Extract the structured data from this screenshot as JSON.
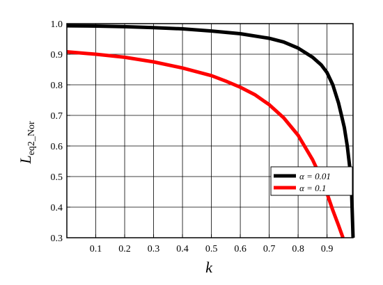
{
  "chart_data": {
    "type": "line",
    "xlabel": "k",
    "ylabel_main": "L",
    "ylabel_sub": "eq2_Nor",
    "xlim": [
      0,
      0.99
    ],
    "ylim": [
      0.3,
      1.0
    ],
    "x_ticks": [
      "0.1",
      "0.2",
      "0.3",
      "0.4",
      "0.5",
      "0.6",
      "0.7",
      "0.8",
      "0.9"
    ],
    "y_ticks": [
      "0.3",
      "0.4",
      "0.5",
      "0.6",
      "0.7",
      "0.8",
      "0.9",
      "1.0"
    ],
    "grid": true,
    "legend_position": "right",
    "series": [
      {
        "name": "α = 0.01",
        "color": "#000000",
        "points": [
          [
            0.0,
            0.993
          ],
          [
            0.1,
            0.992
          ],
          [
            0.2,
            0.99
          ],
          [
            0.3,
            0.987
          ],
          [
            0.4,
            0.983
          ],
          [
            0.5,
            0.976
          ],
          [
            0.6,
            0.967
          ],
          [
            0.7,
            0.952
          ],
          [
            0.75,
            0.94
          ],
          [
            0.8,
            0.92
          ],
          [
            0.85,
            0.89
          ],
          [
            0.88,
            0.865
          ],
          [
            0.9,
            0.84
          ],
          [
            0.92,
            0.8
          ],
          [
            0.94,
            0.74
          ],
          [
            0.95,
            0.7
          ],
          [
            0.96,
            0.66
          ],
          [
            0.97,
            0.6
          ],
          [
            0.98,
            0.52
          ],
          [
            0.985,
            0.45
          ],
          [
            0.99,
            0.3
          ]
        ]
      },
      {
        "name": "α = 0.1",
        "color": "#ff0000",
        "points": [
          [
            0.0,
            0.908
          ],
          [
            0.1,
            0.9
          ],
          [
            0.2,
            0.89
          ],
          [
            0.3,
            0.875
          ],
          [
            0.4,
            0.855
          ],
          [
            0.5,
            0.83
          ],
          [
            0.55,
            0.812
          ],
          [
            0.6,
            0.792
          ],
          [
            0.65,
            0.768
          ],
          [
            0.7,
            0.735
          ],
          [
            0.75,
            0.692
          ],
          [
            0.8,
            0.635
          ],
          [
            0.85,
            0.555
          ],
          [
            0.88,
            0.495
          ],
          [
            0.9,
            0.445
          ],
          [
            0.92,
            0.39
          ],
          [
            0.94,
            0.34
          ],
          [
            0.955,
            0.3
          ]
        ]
      }
    ]
  }
}
